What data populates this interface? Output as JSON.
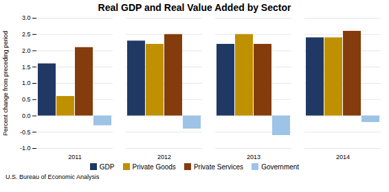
{
  "chart_data": {
    "type": "bar",
    "title": "Real GDP and Real Value Added by Sector",
    "ylabel": "Percent change from preceding period",
    "source": "U.S. Bureau of Economic Analysis",
    "categories": [
      "2011",
      "2012",
      "2013",
      "2014"
    ],
    "series": [
      {
        "name": "GDP",
        "color": "#1F3864",
        "values": [
          1.6,
          2.3,
          2.2,
          2.4
        ]
      },
      {
        "name": "Private Goods",
        "color": "#BF9000",
        "values": [
          0.6,
          2.2,
          2.5,
          2.4
        ]
      },
      {
        "name": "Private Services",
        "color": "#843C0C",
        "values": [
          2.1,
          2.5,
          2.2,
          2.6
        ]
      },
      {
        "name": "Government",
        "color": "#9DC3E6",
        "values": [
          -0.3,
          -0.4,
          -0.6,
          -0.2
        ]
      }
    ],
    "ylim": [
      -1.0,
      3.0
    ],
    "yticks": [
      {
        "value": -1.0,
        "label": "-1.0"
      },
      -0.5,
      {
        "value": 0.0,
        "label": "0.0"
      },
      0.5,
      {
        "value": 1.0,
        "label": "1.0"
      },
      1.5,
      {
        "value": 2.0,
        "label": "2.0"
      },
      2.5,
      {
        "value": 3.0,
        "label": "3.0"
      }
    ],
    "grid": true,
    "legend": "bottom"
  }
}
